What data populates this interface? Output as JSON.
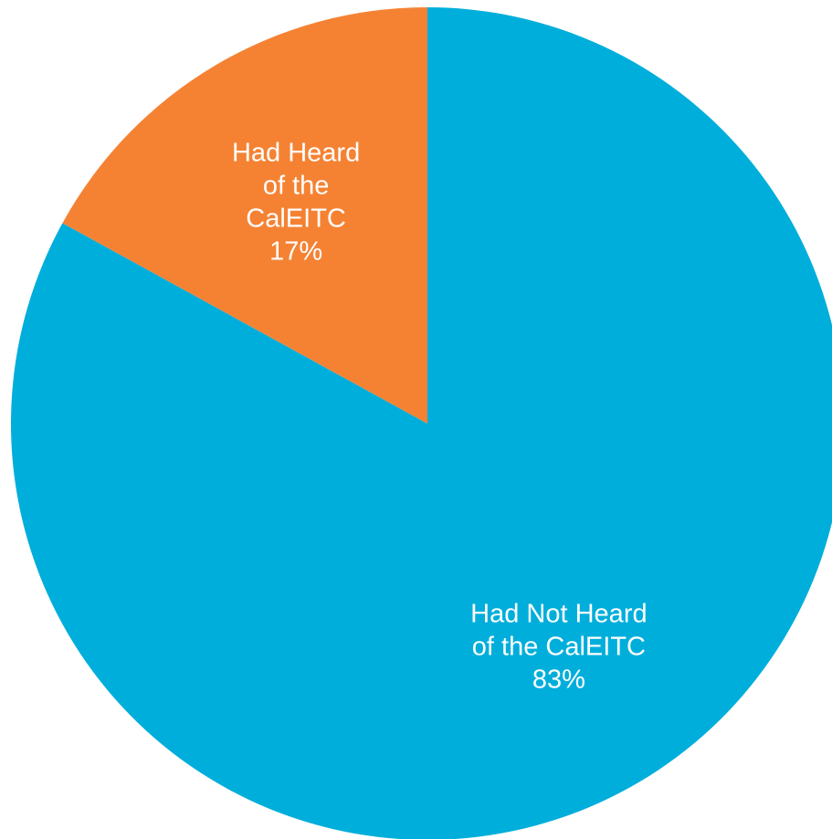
{
  "chart_data": {
    "type": "pie",
    "start": "12 o'clock",
    "direction": "clockwise",
    "slices": [
      {
        "label_lines": [
          "Had Not Heard",
          "of the CalEITC",
          "83%"
        ],
        "value": 83,
        "color": "#00AEDB"
      },
      {
        "label_lines": [
          "Had Heard",
          "of the",
          "CalEITC",
          "17%"
        ],
        "value": 17,
        "color": "#F58233"
      }
    ]
  }
}
